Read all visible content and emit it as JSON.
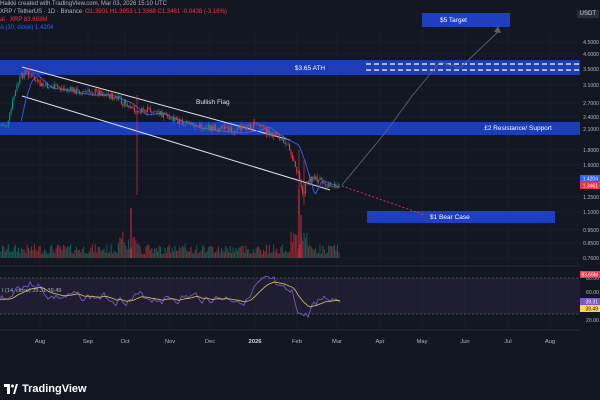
{
  "header": {
    "line1": "Haikki created with TradingView.com, Mar 03, 2026 15:10 UTC",
    "line2_symbol": "XRP / TetherUS · 1D · Binance",
    "line2_values": "O1.3901  H1.3953  L1.3368  C1.3461  -0.0438 (-3.16%)",
    "line3": "al · XRP  83.693M",
    "line4": "A (30, close)  1.4204"
  },
  "currency_badge": "USDT",
  "price_axis": [
    "4.5000",
    "4.0000",
    "3.5000",
    "3.1000",
    "2.7000",
    "2.4000",
    "2.1000",
    "1.8000",
    "1.6000",
    "1.4000",
    "1.2500",
    "1.1000",
    "0.9500",
    "0.8500",
    "0.7600"
  ],
  "price_badges": [
    {
      "value": "1.4204",
      "color": "#2962ff"
    },
    {
      "value": "1.3461",
      "color": "#f23645"
    }
  ],
  "volume_badge": {
    "value": "83.69M",
    "color": "#f23645"
  },
  "rsi": {
    "label": "I (14, close)  39.31  39.49",
    "axis": [
      "80.00",
      "60.00",
      "40.00",
      "20.00"
    ],
    "badges": [
      {
        "value": "39.31",
        "color": "#7e57c2"
      },
      {
        "value": "39.49",
        "color": "#ffd54f"
      }
    ]
  },
  "time_axis": [
    "Aug",
    "Sep",
    "Oct",
    "Nov",
    "Dec",
    "2026",
    "Feb",
    "Mar",
    "Apr",
    "May",
    "Jun",
    "Jul",
    "Aug"
  ],
  "annotations": {
    "target": "$5 Target",
    "ath": "$3.65 ATH",
    "flag": "Bullish Flag",
    "resistance": "£2 Resistance/ Support",
    "bear": "$1 Bear Case"
  },
  "brand": "TradingView",
  "colors": {
    "background": "#131722",
    "up": "#089981",
    "down": "#f23645",
    "zone": "#1e3fc0",
    "ma": "#2962ff",
    "rsi": "#7e57c2",
    "rsi_ma": "#c9b458"
  }
}
